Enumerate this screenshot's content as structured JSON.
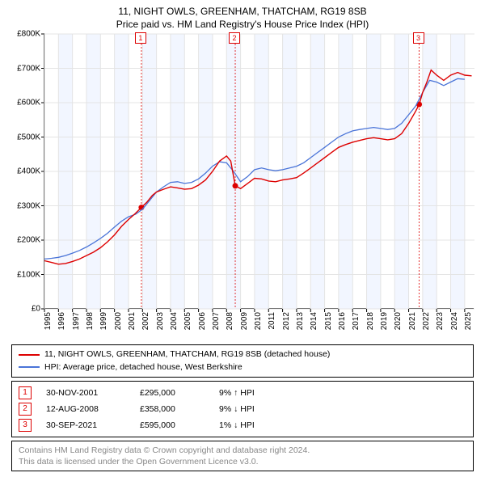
{
  "title": {
    "line1": "11, NIGHT OWLS, GREENHAM, THATCHAM, RG19 8SB",
    "line2": "Price paid vs. HM Land Registry's House Price Index (HPI)"
  },
  "chart": {
    "type": "line",
    "background_color": "#ffffff",
    "grid_color": "#e4e4e4",
    "axis_color": "#000000",
    "xlim": [
      1995,
      2025.7
    ],
    "ylim": [
      0,
      800000
    ],
    "ytick_step": 100000,
    "y_ticks": [
      "£0",
      "£100K",
      "£200K",
      "£300K",
      "£400K",
      "£500K",
      "£600K",
      "£700K",
      "£800K"
    ],
    "x_ticks": [
      1995,
      1996,
      1997,
      1998,
      1999,
      2000,
      2001,
      2002,
      2003,
      2004,
      2005,
      2006,
      2007,
      2008,
      2009,
      2010,
      2011,
      2012,
      2013,
      2014,
      2015,
      2016,
      2017,
      2018,
      2019,
      2020,
      2021,
      2022,
      2023,
      2024,
      2025
    ],
    "alt_band_color": "#f2f6ff",
    "series": [
      {
        "id": "property",
        "label": "11, NIGHT OWLS, GREENHAM, THATCHAM, RG19 8SB (detached house)",
        "color": "#dd0000",
        "line_width": 1.4,
        "points": [
          [
            1995.0,
            140000
          ],
          [
            1995.5,
            135000
          ],
          [
            1996.0,
            130000
          ],
          [
            1996.5,
            132000
          ],
          [
            1997.0,
            138000
          ],
          [
            1997.5,
            145000
          ],
          [
            1998.0,
            155000
          ],
          [
            1998.5,
            165000
          ],
          [
            1999.0,
            178000
          ],
          [
            1999.5,
            195000
          ],
          [
            2000.0,
            215000
          ],
          [
            2000.5,
            240000
          ],
          [
            2001.0,
            260000
          ],
          [
            2001.5,
            278000
          ],
          [
            2001.92,
            295000
          ],
          [
            2002.3,
            310000
          ],
          [
            2002.7,
            330000
          ],
          [
            2003.0,
            340000
          ],
          [
            2003.5,
            348000
          ],
          [
            2004.0,
            355000
          ],
          [
            2004.5,
            352000
          ],
          [
            2005.0,
            348000
          ],
          [
            2005.5,
            350000
          ],
          [
            2006.0,
            360000
          ],
          [
            2006.5,
            375000
          ],
          [
            2007.0,
            400000
          ],
          [
            2007.5,
            430000
          ],
          [
            2008.0,
            445000
          ],
          [
            2008.3,
            430000
          ],
          [
            2008.62,
            358000
          ],
          [
            2009.0,
            350000
          ],
          [
            2009.5,
            365000
          ],
          [
            2010.0,
            380000
          ],
          [
            2010.5,
            378000
          ],
          [
            2011.0,
            372000
          ],
          [
            2011.5,
            370000
          ],
          [
            2012.0,
            375000
          ],
          [
            2012.5,
            378000
          ],
          [
            2013.0,
            382000
          ],
          [
            2013.5,
            395000
          ],
          [
            2014.0,
            410000
          ],
          [
            2014.5,
            425000
          ],
          [
            2015.0,
            440000
          ],
          [
            2015.5,
            455000
          ],
          [
            2016.0,
            470000
          ],
          [
            2016.5,
            478000
          ],
          [
            2017.0,
            485000
          ],
          [
            2017.5,
            490000
          ],
          [
            2018.0,
            495000
          ],
          [
            2018.5,
            498000
          ],
          [
            2019.0,
            495000
          ],
          [
            2019.5,
            492000
          ],
          [
            2020.0,
            495000
          ],
          [
            2020.5,
            510000
          ],
          [
            2021.0,
            540000
          ],
          [
            2021.5,
            575000
          ],
          [
            2021.75,
            595000
          ],
          [
            2022.0,
            630000
          ],
          [
            2022.3,
            660000
          ],
          [
            2022.6,
            695000
          ],
          [
            2023.0,
            680000
          ],
          [
            2023.5,
            665000
          ],
          [
            2024.0,
            680000
          ],
          [
            2024.5,
            688000
          ],
          [
            2025.0,
            680000
          ],
          [
            2025.5,
            678000
          ]
        ]
      },
      {
        "id": "hpi",
        "label": "HPI: Average price, detached house, West Berkshire",
        "color": "#4a74d8",
        "line_width": 1.3,
        "points": [
          [
            1995.0,
            145000
          ],
          [
            1995.5,
            147000
          ],
          [
            1996.0,
            150000
          ],
          [
            1996.5,
            155000
          ],
          [
            1997.0,
            162000
          ],
          [
            1997.5,
            170000
          ],
          [
            1998.0,
            180000
          ],
          [
            1998.5,
            192000
          ],
          [
            1999.0,
            205000
          ],
          [
            1999.5,
            220000
          ],
          [
            2000.0,
            238000
          ],
          [
            2000.5,
            255000
          ],
          [
            2001.0,
            268000
          ],
          [
            2001.5,
            275000
          ],
          [
            2002.0,
            290000
          ],
          [
            2002.5,
            315000
          ],
          [
            2003.0,
            340000
          ],
          [
            2003.5,
            355000
          ],
          [
            2004.0,
            368000
          ],
          [
            2004.5,
            370000
          ],
          [
            2005.0,
            365000
          ],
          [
            2005.5,
            368000
          ],
          [
            2006.0,
            378000
          ],
          [
            2006.5,
            395000
          ],
          [
            2007.0,
            415000
          ],
          [
            2007.5,
            428000
          ],
          [
            2008.0,
            425000
          ],
          [
            2008.5,
            400000
          ],
          [
            2009.0,
            370000
          ],
          [
            2009.5,
            385000
          ],
          [
            2010.0,
            405000
          ],
          [
            2010.5,
            410000
          ],
          [
            2011.0,
            405000
          ],
          [
            2011.5,
            402000
          ],
          [
            2012.0,
            405000
          ],
          [
            2012.5,
            410000
          ],
          [
            2013.0,
            415000
          ],
          [
            2013.5,
            425000
          ],
          [
            2014.0,
            440000
          ],
          [
            2014.5,
            455000
          ],
          [
            2015.0,
            470000
          ],
          [
            2015.5,
            485000
          ],
          [
            2016.0,
            500000
          ],
          [
            2016.5,
            510000
          ],
          [
            2017.0,
            518000
          ],
          [
            2017.5,
            522000
          ],
          [
            2018.0,
            525000
          ],
          [
            2018.5,
            528000
          ],
          [
            2019.0,
            525000
          ],
          [
            2019.5,
            522000
          ],
          [
            2020.0,
            525000
          ],
          [
            2020.5,
            540000
          ],
          [
            2021.0,
            565000
          ],
          [
            2021.5,
            590000
          ],
          [
            2022.0,
            630000
          ],
          [
            2022.5,
            665000
          ],
          [
            2023.0,
            660000
          ],
          [
            2023.5,
            650000
          ],
          [
            2024.0,
            660000
          ],
          [
            2024.5,
            670000
          ],
          [
            2025.0,
            668000
          ]
        ]
      }
    ],
    "events": [
      {
        "n": "1",
        "x": 2001.92,
        "date": "30-NOV-2001",
        "price": "£295,000",
        "delta": "9% ↑ HPI",
        "marker_y": 295000
      },
      {
        "n": "2",
        "x": 2008.62,
        "date": "12-AUG-2008",
        "price": "£358,000",
        "delta": "9% ↓ HPI",
        "marker_y": 358000
      },
      {
        "n": "3",
        "x": 2021.75,
        "date": "30-SEP-2021",
        "price": "£595,000",
        "delta": "1% ↓ HPI",
        "marker_y": 595000
      }
    ],
    "event_line_color": "#dd0000",
    "event_marker_fill": "#dd0000",
    "event_badge_top_y": 790000
  },
  "footer": {
    "line1": "Contains HM Land Registry data © Crown copyright and database right 2024.",
    "line2": "This data is licensed under the Open Government Licence v3.0.",
    "color": "#888888"
  }
}
